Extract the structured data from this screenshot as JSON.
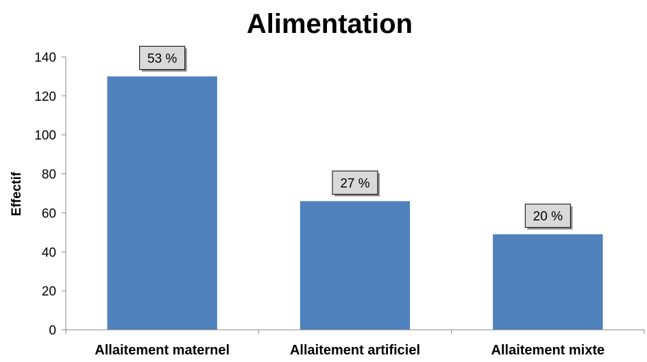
{
  "chart_data": {
    "type": "bar",
    "title": "Alimentation",
    "xlabel": "",
    "ylabel": "Effectif",
    "ylim": [
      0,
      140
    ],
    "yticks": [
      0,
      20,
      40,
      60,
      80,
      100,
      120,
      140
    ],
    "categories": [
      "Allaitement maternel",
      "Allaitement artificiel",
      "Allaitement mixte"
    ],
    "values": [
      130,
      66,
      49
    ],
    "data_labels": [
      "53 %",
      "27 %",
      "20 %"
    ],
    "grid": false,
    "legend": "none",
    "colors": {
      "bar": "#4F81BD",
      "axis": "#868686",
      "label_box_fill": "#D9D9D9",
      "label_box_border": "#000000"
    }
  }
}
